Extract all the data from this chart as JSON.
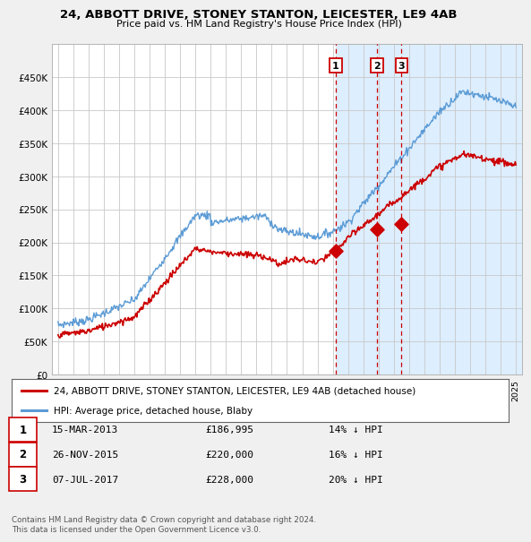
{
  "title": "24, ABBOTT DRIVE, STONEY STANTON, LEICESTER, LE9 4AB",
  "subtitle": "Price paid vs. HM Land Registry's House Price Index (HPI)",
  "hpi_color": "#5b9bd5",
  "price_color": "#cc0000",
  "vline_color": "#cc0000",
  "shade_color": "#ddeeff",
  "background_color": "#f0f0f0",
  "plot_bg_color": "#ffffff",
  "ylim": [
    0,
    500000
  ],
  "yticks": [
    0,
    50000,
    100000,
    150000,
    200000,
    250000,
    300000,
    350000,
    400000,
    450000
  ],
  "ytick_labels": [
    "£0",
    "£50K",
    "£100K",
    "£150K",
    "£200K",
    "£250K",
    "£300K",
    "£350K",
    "£400K",
    "£450K"
  ],
  "xlim_start": 1994.6,
  "xlim_end": 2025.4,
  "shade_start": 2013.2,
  "transactions": [
    {
      "num": 1,
      "date": "15-MAR-2013",
      "price": 186995,
      "pct": "14%",
      "x": 2013.2
    },
    {
      "num": 2,
      "date": "26-NOV-2015",
      "price": 220000,
      "pct": "16%",
      "x": 2015.9
    },
    {
      "num": 3,
      "date": "07-JUL-2017",
      "price": 228000,
      "pct": "20%",
      "x": 2017.5
    }
  ],
  "legend_label_red": "24, ABBOTT DRIVE, STONEY STANTON, LEICESTER, LE9 4AB (detached house)",
  "legend_label_blue": "HPI: Average price, detached house, Blaby",
  "footer": "Contains HM Land Registry data © Crown copyright and database right 2024.\nThis data is licensed under the Open Government Licence v3.0."
}
